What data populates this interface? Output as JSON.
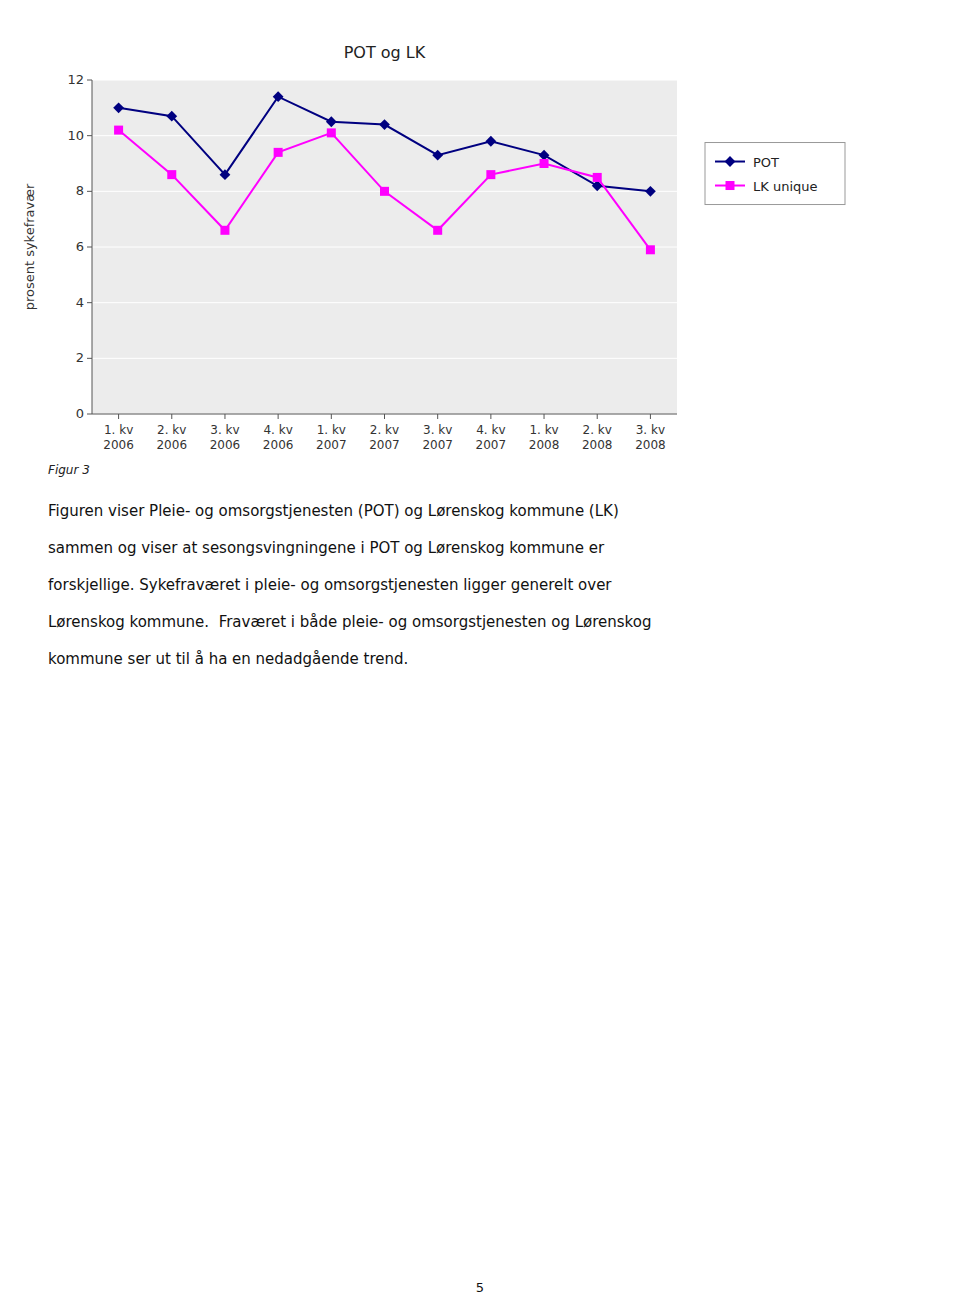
{
  "chart_data": {
    "type": "line",
    "title": "POT og LK",
    "ylabel": "prosent sykefravær",
    "categories": [
      "1. kv\n2006",
      "2. kv\n2006",
      "3. kv\n2006",
      "4. kv\n2006",
      "1. kv\n2007",
      "2. kv\n2007",
      "3. kv\n2007",
      "4. kv\n2007",
      "1. kv\n2008",
      "2. kv\n2008",
      "3. kv\n2008"
    ],
    "series": [
      {
        "name": "POT",
        "color": "#000080",
        "marker": "diamond",
        "values": [
          11.0,
          10.7,
          8.6,
          11.4,
          10.5,
          10.4,
          9.3,
          9.8,
          9.3,
          8.2,
          8.0
        ]
      },
      {
        "name": "LK unique",
        "color": "#FF00FF",
        "marker": "square",
        "values": [
          10.2,
          8.6,
          6.6,
          9.4,
          10.1,
          8.0,
          6.6,
          8.6,
          9.0,
          8.5,
          5.9
        ]
      }
    ],
    "ylim": [
      0,
      12
    ],
    "yticks": [
      0,
      2,
      4,
      6,
      8,
      10,
      12
    ],
    "grid": true,
    "legend": "right"
  },
  "caption": "Figur 3",
  "body_text": [
    "Figuren viser Pleie- og omsorgstjenesten (POT) og Lørenskog kommune (LK)",
    "sammen og viser at sesongsvingningene i POT og Lørenskog kommune er",
    "forskjellige. Sykefraværet i pleie- og omsorgstjenesten ligger generelt over",
    "Lørenskog kommune.  Fraværet i både pleie- og omsorgstjenesten og Lørenskog",
    "kommune ser ut til å ha en nedadgående trend."
  ],
  "page_number": "5"
}
